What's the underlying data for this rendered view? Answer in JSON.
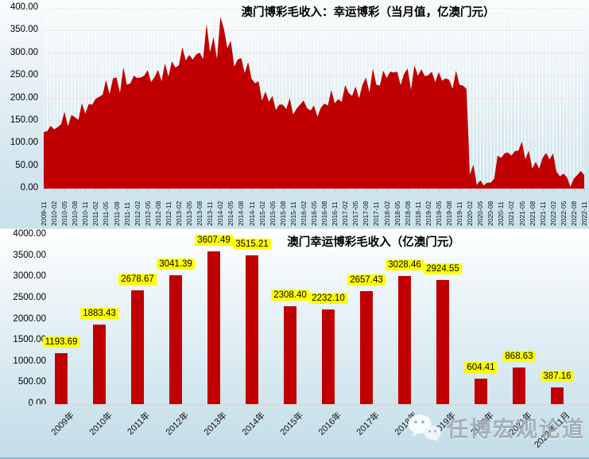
{
  "page": {
    "watermark": {
      "label": "任博宏观论道",
      "icon": "wechat-icon"
    }
  },
  "chart_data": [
    {
      "type": "area",
      "title": "澳门博彩毛收入：幸运博彩（当月值，亿澳门元）",
      "unit": "亿澳门元",
      "series_color": "#C00000",
      "ylim": [
        0,
        400
      ],
      "ytick_step": 50,
      "ytick_labels": [
        "400.00",
        "350.00",
        "300.00",
        "250.00",
        "200.00",
        "150.00",
        "100.00",
        "50.00",
        "0.00"
      ],
      "grid": "vertical-white-per-month-and-faint-horizontal",
      "x_start": "2009-11",
      "x_end": "2022-11",
      "x_tick_every_months": 3,
      "x_tick_labels": [
        "2009-11",
        "2010-02",
        "2010-05",
        "2010-08",
        "2010-11",
        "2011-02",
        "2011-05",
        "2011-08",
        "2011-11",
        "2012-02",
        "2012-05",
        "2012-08",
        "2012-11",
        "2013-02",
        "2013-05",
        "2013-08",
        "2013-11",
        "2014-02",
        "2014-05",
        "2014-08",
        "2014-11",
        "2015-02",
        "2015-05",
        "2015-08",
        "2015-11",
        "2016-02",
        "2016-05",
        "2016-08",
        "2016-11",
        "2017-02",
        "2017-05",
        "2017-08",
        "2017-11",
        "2018-02",
        "2018-05",
        "2018-08",
        "2018-11",
        "2019-02",
        "2019-05",
        "2019-08",
        "2019-11",
        "2020-02",
        "2020-05",
        "2020-08",
        "2020-11",
        "2021-02",
        "2021-05",
        "2021-08",
        "2021-11",
        "2022-02",
        "2022-05",
        "2022-08",
        "2022-11"
      ],
      "series": [
        {
          "name": "澳门博彩毛收入（当月值）",
          "values": [
            125,
            127,
            139,
            131,
            136,
            142,
            170,
            138,
            163,
            158,
            152,
            189,
            166,
            187,
            186,
            199,
            203,
            208,
            240,
            209,
            244,
            246,
            212,
            269,
            230,
            233,
            250,
            245,
            246,
            250,
            262,
            236,
            247,
            263,
            238,
            277,
            248,
            282,
            268,
            273,
            313,
            284,
            296,
            286,
            297,
            301,
            287,
            365,
            302,
            336,
            287,
            380,
            354,
            311,
            327,
            270,
            286,
            289,
            256,
            280,
            243,
            233,
            238,
            195,
            215,
            192,
            205,
            174,
            186,
            186,
            176,
            200,
            164,
            177,
            186,
            195,
            178,
            173,
            184,
            159,
            179,
            188,
            184,
            218,
            189,
            198,
            192,
            229,
            212,
            205,
            226,
            200,
            230,
            246,
            213,
            266,
            230,
            228,
            261,
            245,
            259,
            257,
            259,
            229,
            254,
            266,
            219,
            273,
            250,
            264,
            249,
            251,
            259,
            236,
            258,
            239,
            244,
            241,
            221,
            261,
            230,
            228,
            221,
            31,
            53,
            8,
            18,
            7,
            13,
            13,
            22,
            73,
            68,
            78,
            80,
            73,
            83,
            84,
            104,
            65,
            84,
            44,
            59,
            44,
            68,
            79,
            64,
            78,
            37,
            27,
            33,
            25,
            4,
            22,
            30,
            39,
            30
          ]
        }
      ]
    },
    {
      "type": "bar",
      "title": "澳门幸运博彩毛收入（亿澳门元）",
      "unit": "亿澳门元",
      "bar_color": "#C00000",
      "label_bg": "#FFFF00",
      "ylim": [
        0,
        4000
      ],
      "ytick_step": 500,
      "ytick_labels": [
        "4000.00",
        "3500.00",
        "3000.00",
        "2500.00",
        "2000.00",
        "1500.00",
        "1000.00",
        "500.00",
        "0.00"
      ],
      "categories": [
        "2009年",
        "2010年",
        "2011年",
        "2012年",
        "2013年",
        "2014年",
        "2015年",
        "2016年",
        "2017年",
        "2018年",
        "2019年",
        "2020年",
        "2021年",
        "2022年11月"
      ],
      "values": [
        1193.69,
        1883.43,
        2678.67,
        3041.39,
        3607.49,
        3515.21,
        2308.4,
        2232.1,
        2657.43,
        3028.46,
        2924.55,
        604.41,
        868.63,
        387.16
      ],
      "value_labels": [
        "1193.69",
        "1883.43",
        "2678.67",
        "3041.39",
        "3607.49",
        "3515.21",
        "2308.40",
        "2232.10",
        "2657.43",
        "3028.46",
        "2924.55",
        "604.41",
        "868.63",
        "387.16"
      ]
    }
  ]
}
